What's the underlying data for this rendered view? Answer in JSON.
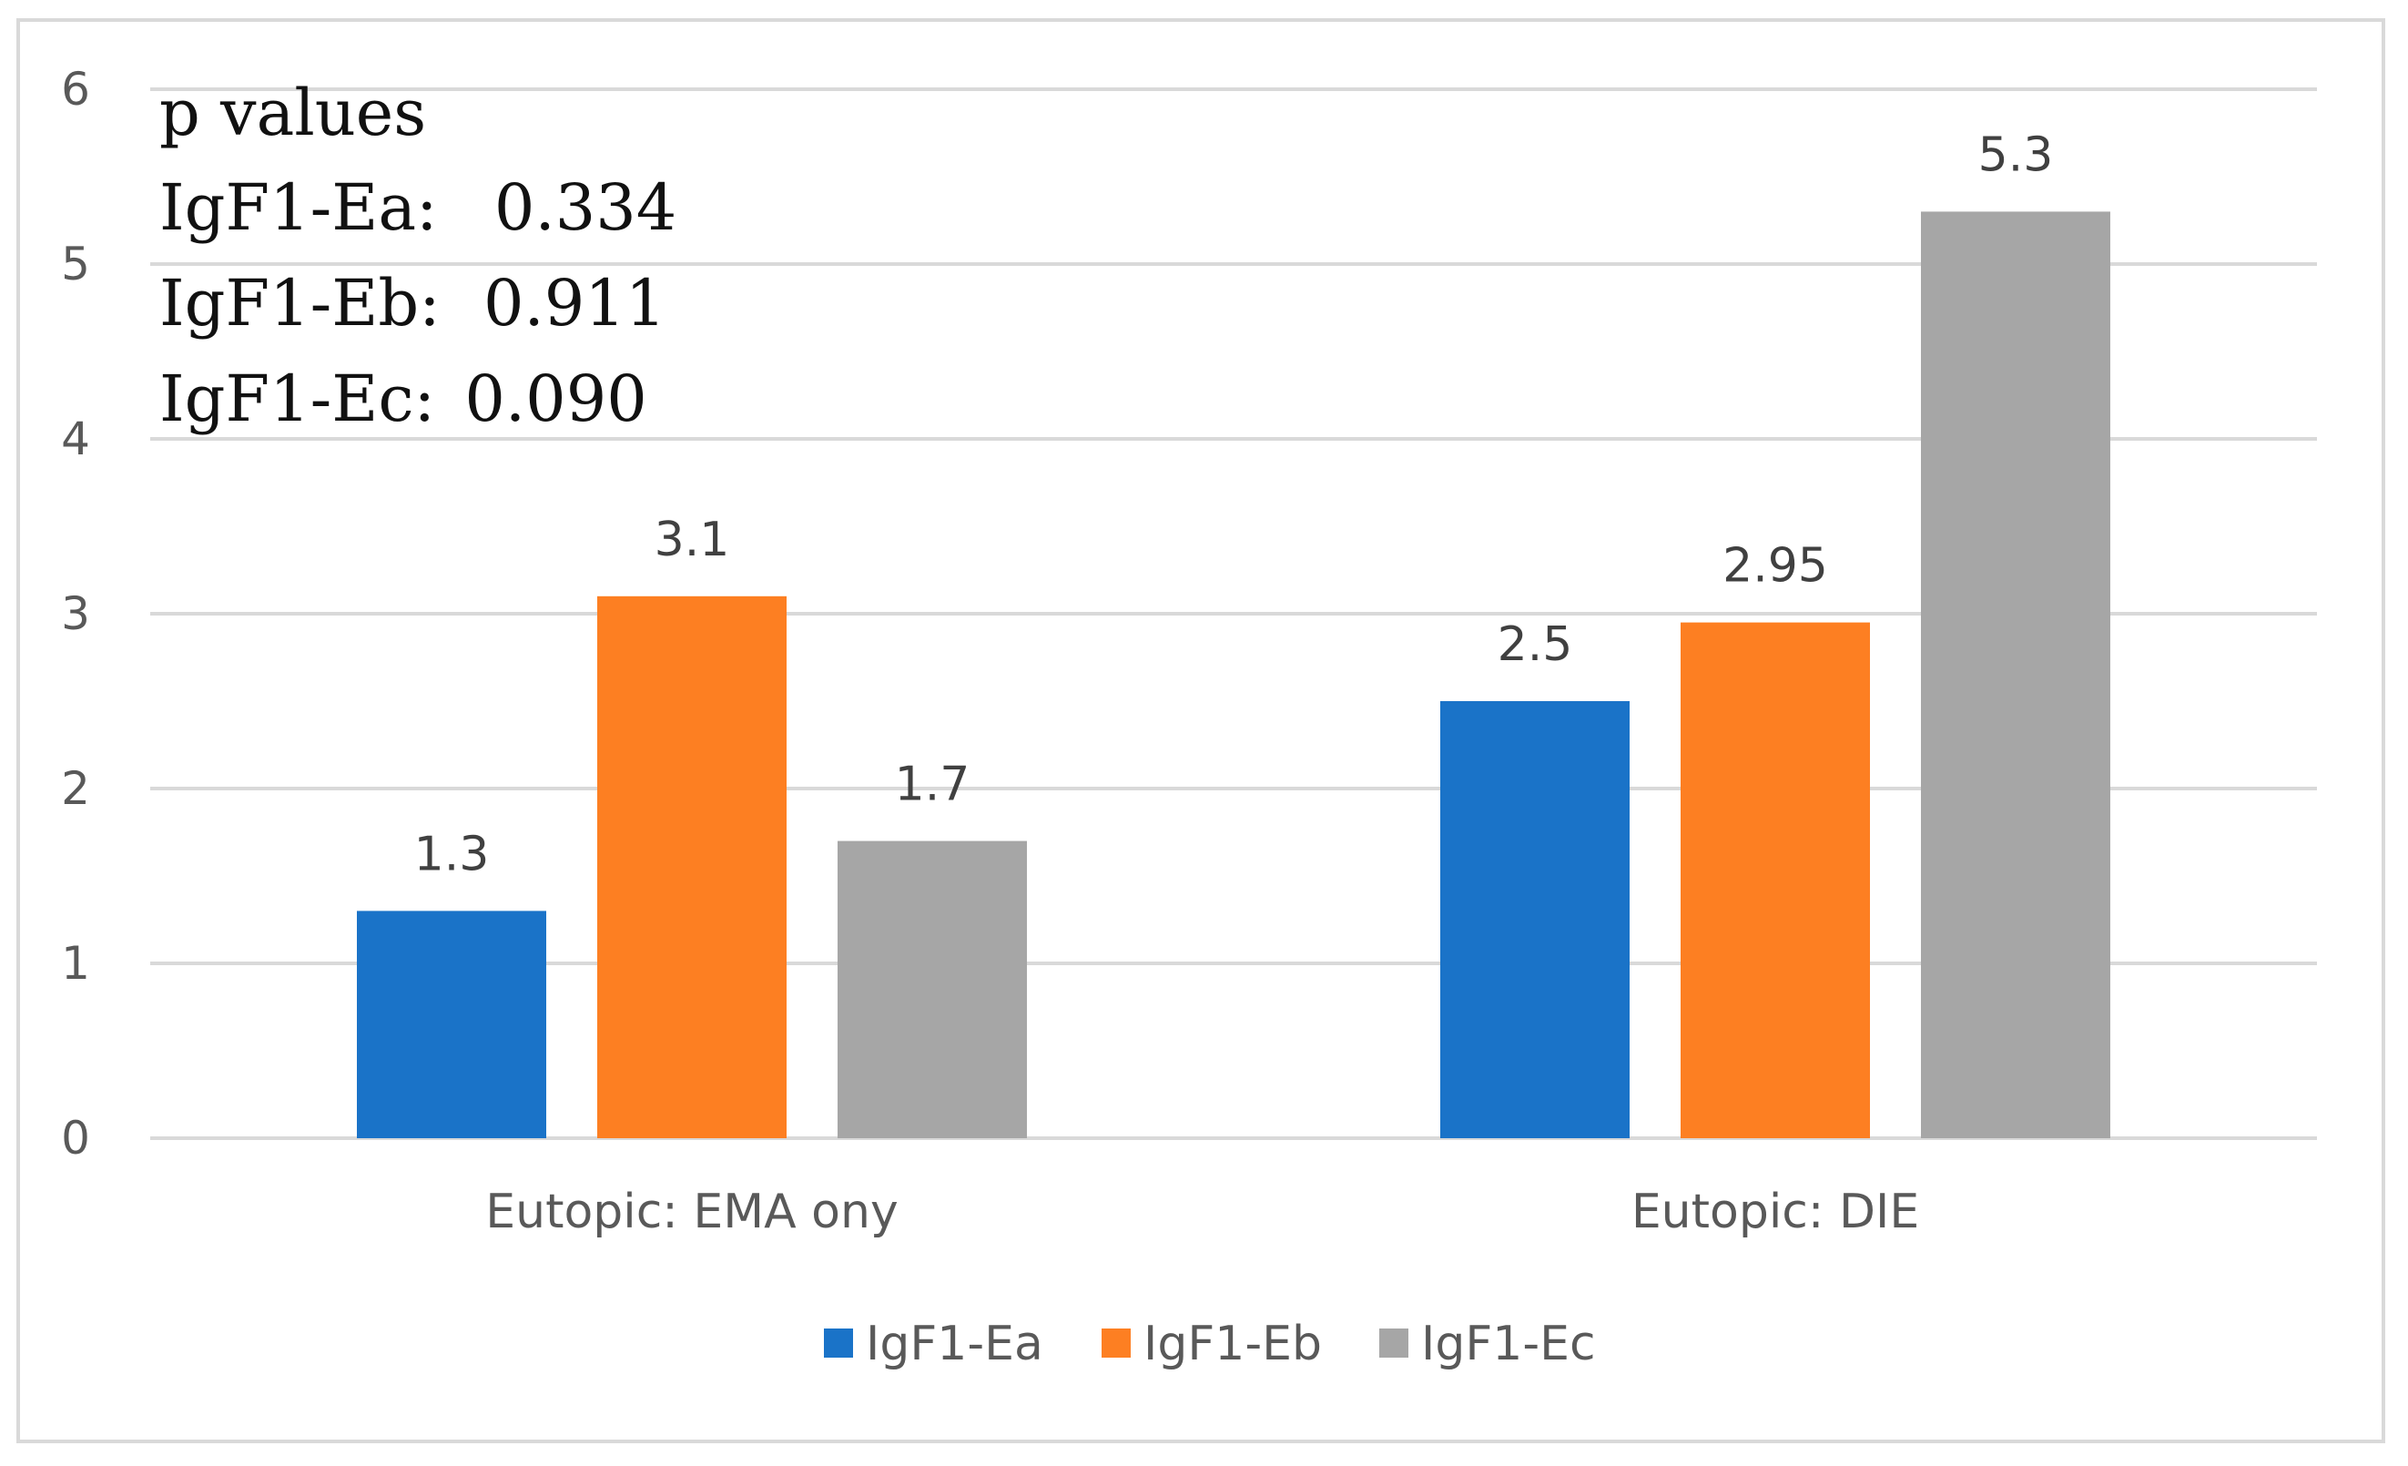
{
  "chart_data": {
    "type": "bar",
    "categories": [
      "Eutopic: EMA ony",
      "Eutopic: DIE"
    ],
    "series": [
      {
        "name": "IgF1-Ea",
        "values": [
          1.3,
          2.5
        ],
        "color": "#1a73c8"
      },
      {
        "name": "IgF1-Eb",
        "values": [
          3.1,
          2.95
        ],
        "color": "#fd7f22"
      },
      {
        "name": "IgF1-Ec",
        "values": [
          1.7,
          5.3
        ],
        "color": "#a6a6a6"
      }
    ],
    "ylim": [
      0,
      6
    ],
    "yticks": [
      0,
      1,
      2,
      3,
      4,
      5,
      6
    ],
    "grid": true,
    "legend": "bottom-center",
    "annotation": {
      "heading": "p values",
      "lines": [
        {
          "label": "IgF1-Ea:",
          "value": "0.334"
        },
        {
          "label": "IgF1-Eb:",
          "value": "0.911"
        },
        {
          "label": "IgF1-Ec:",
          "value": "0.090"
        }
      ]
    }
  }
}
